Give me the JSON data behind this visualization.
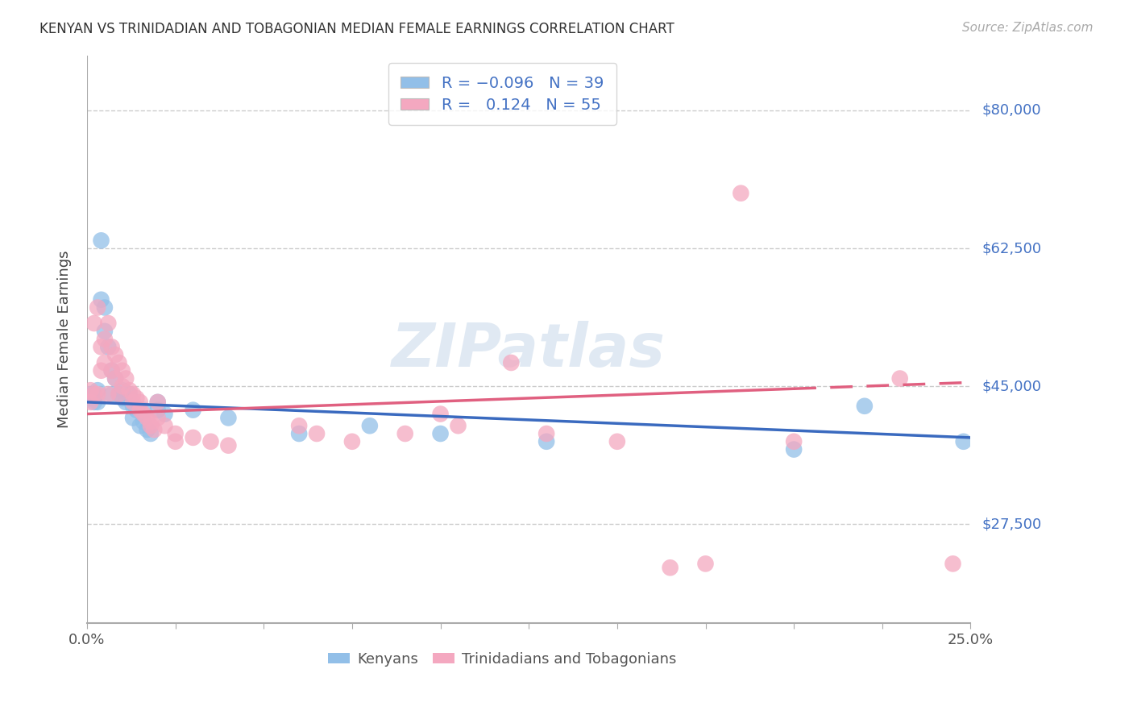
{
  "title": "KENYAN VS TRINIDADIAN AND TOBAGONIAN MEDIAN FEMALE EARNINGS CORRELATION CHART",
  "source": "Source: ZipAtlas.com",
  "ylabel": "Median Female Earnings",
  "ytick_labels": [
    "$27,500",
    "$45,000",
    "$62,500",
    "$80,000"
  ],
  "ytick_values": [
    27500,
    45000,
    62500,
    80000
  ],
  "xlim": [
    0.0,
    0.25
  ],
  "ylim": [
    15000,
    87000
  ],
  "kenyan_color": "#92bfe8",
  "trinidadian_color": "#f4a8c0",
  "kenyan_line_color": "#3a6abf",
  "trinidadian_line_color": "#e06080",
  "watermark": "ZIPatlas",
  "background_color": "#ffffff",
  "grid_color": "#cccccc",
  "kenyan_points": [
    [
      0.001,
      44000
    ],
    [
      0.001,
      43500
    ],
    [
      0.002,
      44000
    ],
    [
      0.002,
      43000
    ],
    [
      0.003,
      44500
    ],
    [
      0.003,
      43000
    ],
    [
      0.004,
      56000
    ],
    [
      0.004,
      63500
    ],
    [
      0.005,
      55000
    ],
    [
      0.005,
      52000
    ],
    [
      0.006,
      50000
    ],
    [
      0.007,
      47000
    ],
    [
      0.007,
      44000
    ],
    [
      0.008,
      46000
    ],
    [
      0.009,
      44000
    ],
    [
      0.01,
      44500
    ],
    [
      0.01,
      43500
    ],
    [
      0.011,
      43000
    ],
    [
      0.012,
      44000
    ],
    [
      0.013,
      42500
    ],
    [
      0.013,
      41000
    ],
    [
      0.014,
      42000
    ],
    [
      0.015,
      40000
    ],
    [
      0.016,
      42000
    ],
    [
      0.016,
      40500
    ],
    [
      0.017,
      39500
    ],
    [
      0.018,
      39000
    ],
    [
      0.02,
      43000
    ],
    [
      0.02,
      42000
    ],
    [
      0.022,
      41500
    ],
    [
      0.03,
      42000
    ],
    [
      0.04,
      41000
    ],
    [
      0.06,
      39000
    ],
    [
      0.08,
      40000
    ],
    [
      0.1,
      39000
    ],
    [
      0.13,
      38000
    ],
    [
      0.2,
      37000
    ],
    [
      0.22,
      42500
    ],
    [
      0.248,
      38000
    ]
  ],
  "trinidadian_points": [
    [
      0.001,
      44500
    ],
    [
      0.001,
      43000
    ],
    [
      0.002,
      44000
    ],
    [
      0.002,
      53000
    ],
    [
      0.003,
      55000
    ],
    [
      0.003,
      44000
    ],
    [
      0.004,
      50000
    ],
    [
      0.004,
      47000
    ],
    [
      0.005,
      51000
    ],
    [
      0.005,
      48000
    ],
    [
      0.006,
      53000
    ],
    [
      0.006,
      44000
    ],
    [
      0.007,
      50000
    ],
    [
      0.007,
      47000
    ],
    [
      0.008,
      49000
    ],
    [
      0.008,
      46000
    ],
    [
      0.009,
      48000
    ],
    [
      0.009,
      44000
    ],
    [
      0.01,
      47000
    ],
    [
      0.01,
      45000
    ],
    [
      0.011,
      46000
    ],
    [
      0.012,
      44500
    ],
    [
      0.013,
      44000
    ],
    [
      0.013,
      43000
    ],
    [
      0.014,
      43500
    ],
    [
      0.015,
      43000
    ],
    [
      0.015,
      42000
    ],
    [
      0.016,
      41500
    ],
    [
      0.017,
      41000
    ],
    [
      0.018,
      40500
    ],
    [
      0.018,
      40000
    ],
    [
      0.019,
      39500
    ],
    [
      0.02,
      43000
    ],
    [
      0.02,
      41000
    ],
    [
      0.022,
      40000
    ],
    [
      0.025,
      39000
    ],
    [
      0.025,
      38000
    ],
    [
      0.03,
      38500
    ],
    [
      0.035,
      38000
    ],
    [
      0.04,
      37500
    ],
    [
      0.06,
      40000
    ],
    [
      0.065,
      39000
    ],
    [
      0.075,
      38000
    ],
    [
      0.09,
      39000
    ],
    [
      0.1,
      41500
    ],
    [
      0.105,
      40000
    ],
    [
      0.12,
      48000
    ],
    [
      0.13,
      39000
    ],
    [
      0.15,
      38000
    ],
    [
      0.165,
      22000
    ],
    [
      0.175,
      22500
    ],
    [
      0.185,
      69500
    ],
    [
      0.2,
      38000
    ],
    [
      0.23,
      46000
    ],
    [
      0.245,
      22500
    ]
  ]
}
